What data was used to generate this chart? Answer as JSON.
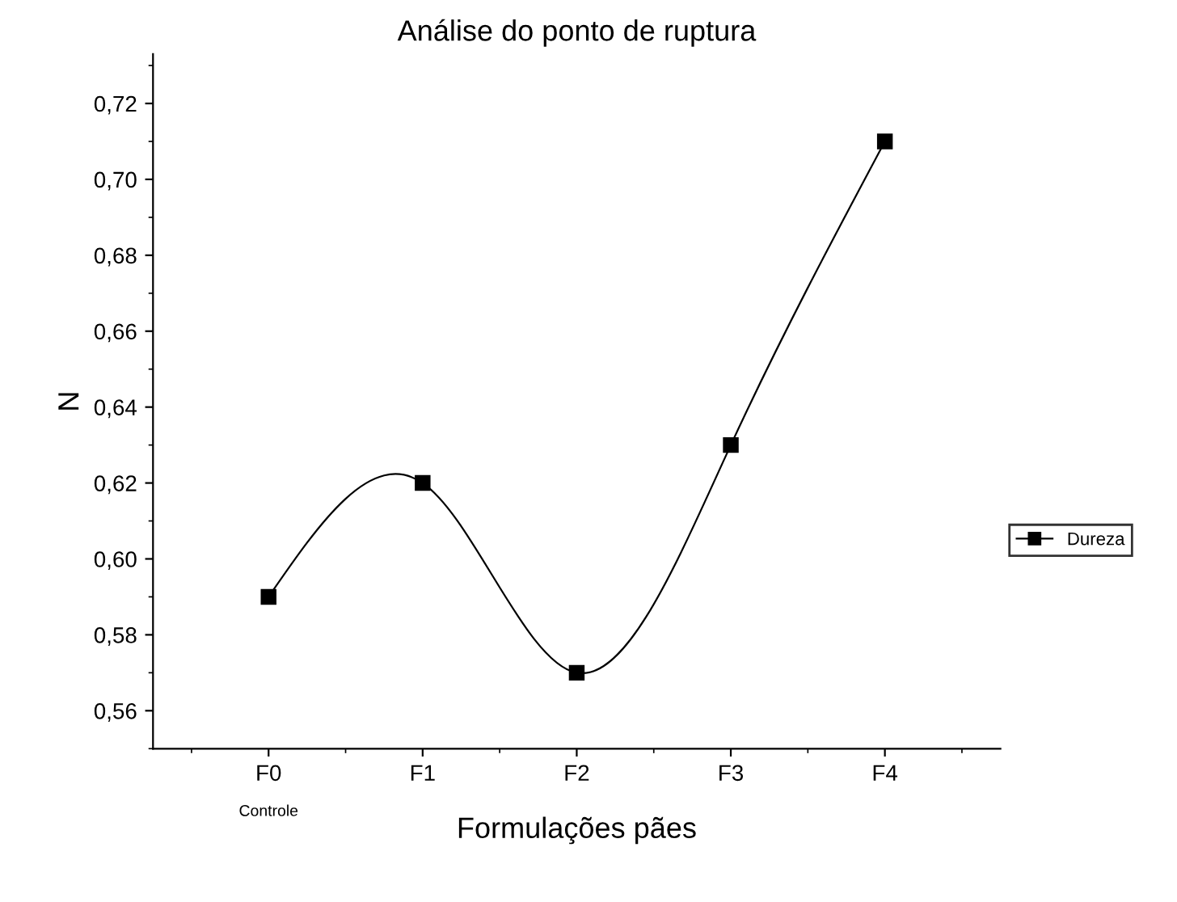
{
  "chart_data": {
    "type": "line",
    "title": "Análise do ponto de ruptura",
    "xlabel": "Formulações pães",
    "ylabel": "N",
    "categories": [
      "F0",
      "F1",
      "F2",
      "F3",
      "F4"
    ],
    "series": [
      {
        "name": "Dureza",
        "color": "#000000",
        "values": [
          0.59,
          0.62,
          0.57,
          0.63,
          0.71
        ]
      }
    ],
    "ylim": [
      0.55,
      0.733
    ],
    "yticks": [
      {
        "value": 0.56,
        "label": "0,56"
      },
      {
        "value": 0.58,
        "label": "0,58"
      },
      {
        "value": 0.6,
        "label": "0,60"
      },
      {
        "value": 0.62,
        "label": "0,62"
      },
      {
        "value": 0.64,
        "label": "0,64"
      },
      {
        "value": 0.66,
        "label": "0,66"
      },
      {
        "value": 0.68,
        "label": "0,68"
      },
      {
        "value": 0.7,
        "label": "0,70"
      },
      {
        "value": 0.72,
        "label": "0,72"
      }
    ],
    "annotations": [
      "Controle"
    ],
    "marker": "square",
    "line_style": "solid",
    "grid": false,
    "legend": "right"
  }
}
